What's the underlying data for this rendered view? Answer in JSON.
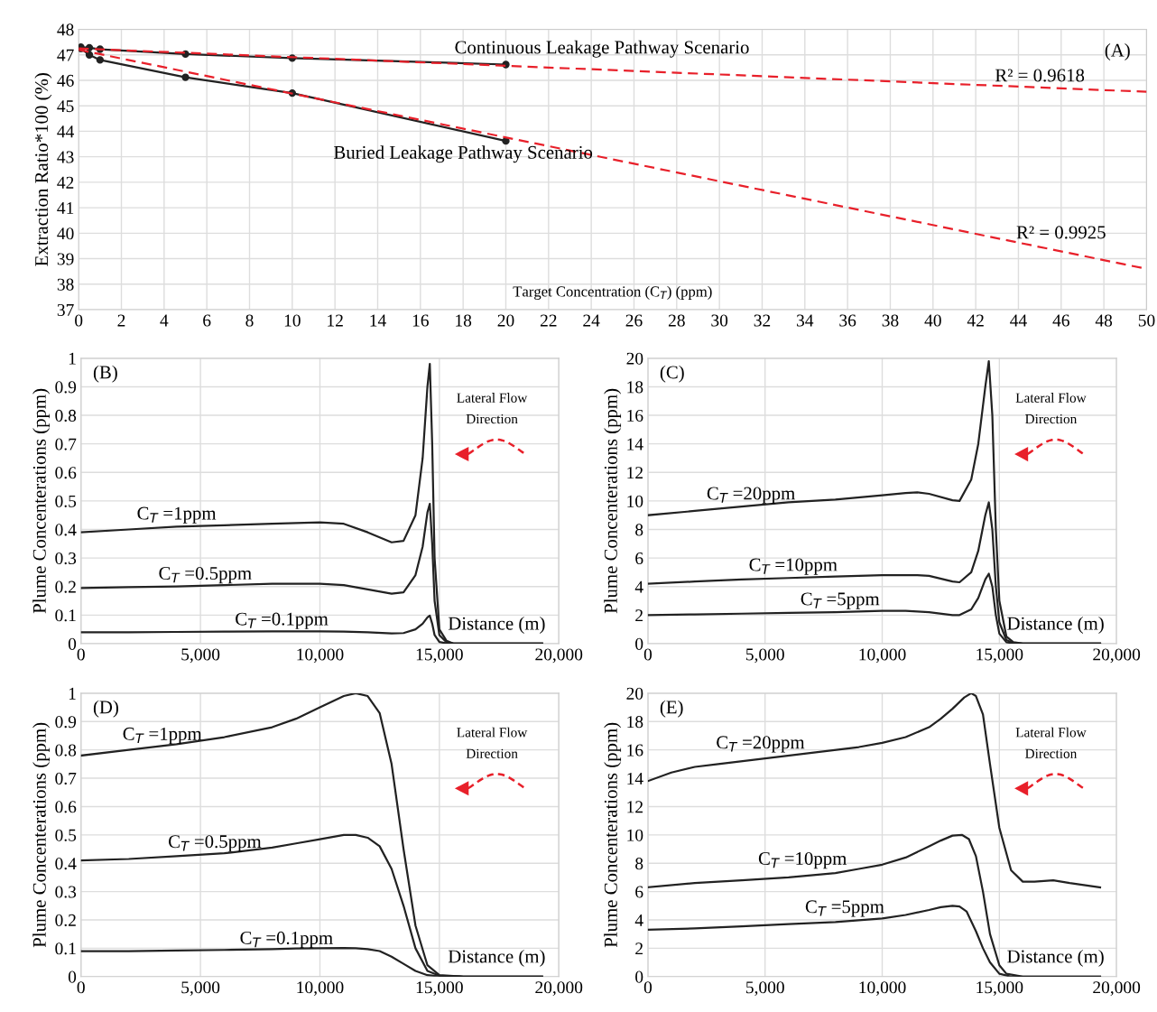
{
  "chart_data": [
    {
      "type": "line",
      "title": "(A)",
      "xlabel": "Target Concentration (C$_{T}$) (ppm)",
      "ylabel": "Extraction Ratio*100 (%)",
      "xlim": [
        0,
        50
      ],
      "ylim": [
        37,
        48
      ],
      "xticks": [
        0,
        2,
        4,
        6,
        8,
        10,
        12,
        14,
        16,
        18,
        20,
        22,
        24,
        26,
        28,
        30,
        32,
        34,
        36,
        38,
        40,
        42,
        44,
        46,
        48,
        50
      ],
      "yticks": [
        37,
        38,
        39,
        40,
        41,
        42,
        43,
        44,
        45,
        46,
        47,
        48
      ],
      "grid": true,
      "series": [
        {
          "name": "Continuous Leakage Pathway Scenario",
          "color": "#222222",
          "marker": "circle",
          "line_style": "solid",
          "x": [
            0.1,
            0.5,
            1,
            5,
            10,
            20
          ],
          "values": [
            47.3,
            47.28,
            47.22,
            47.03,
            46.87,
            46.62
          ]
        },
        {
          "name": "Buried Leakage Pathway Scenario",
          "color": "#222222",
          "marker": "circle",
          "line_style": "solid",
          "x": [
            0.1,
            0.5,
            1,
            5,
            10,
            20
          ],
          "values": [
            47.25,
            47.0,
            46.8,
            46.12,
            45.5,
            43.62
          ]
        },
        {
          "name": "R² = 0.9618",
          "color": "#e8202a",
          "marker": "none",
          "line_style": "dashed",
          "x": [
            0,
            50
          ],
          "values": [
            47.25,
            45.55
          ]
        },
        {
          "name": "R² = 0.9925",
          "color": "#e8202a",
          "marker": "none",
          "line_style": "dashed",
          "x": [
            0,
            50
          ],
          "values": [
            47.2,
            38.6
          ]
        }
      ]
    },
    {
      "type": "line",
      "title": "(B)",
      "xlabel": "Distance (m)",
      "ylabel": "Plume Concenterations (ppm)",
      "xlim": [
        0,
        20000
      ],
      "ylim": [
        0,
        1
      ],
      "xticks": [
        0,
        {
          "value": 5000,
          "label": "5,000"
        },
        {
          "value": 10000,
          "label": "10,000"
        },
        {
          "value": 15000,
          "label": "15,000"
        },
        {
          "value": 20000,
          "label": "20,000"
        }
      ],
      "yticks": [
        0,
        0.1,
        0.2,
        0.3,
        0.4,
        0.5,
        0.6,
        0.7,
        0.8,
        0.9,
        1
      ],
      "grid": true,
      "x": [
        0,
        2000,
        4000,
        6000,
        8000,
        10000,
        11000,
        12000,
        13000,
        13500,
        14000,
        14300,
        14500,
        14600,
        14700,
        14800,
        15000,
        15300,
        15600,
        16000,
        17000,
        18000,
        19300
      ],
      "series": [
        {
          "name": "C$_{T}$ =1ppm",
          "color": "#222222",
          "values": [
            0.39,
            0.4,
            0.41,
            0.415,
            0.42,
            0.425,
            0.42,
            0.39,
            0.355,
            0.36,
            0.45,
            0.65,
            0.9,
            0.98,
            0.7,
            0.3,
            0.05,
            0.01,
            0,
            0,
            0,
            0,
            0
          ]
        },
        {
          "name": "C$_{T}$ =0.5ppm",
          "color": "#222222",
          "values": [
            0.195,
            0.198,
            0.2,
            0.205,
            0.21,
            0.21,
            0.205,
            0.19,
            0.175,
            0.18,
            0.24,
            0.34,
            0.46,
            0.49,
            0.35,
            0.15,
            0.03,
            0.005,
            0,
            0,
            0,
            0,
            0
          ]
        },
        {
          "name": "C$_{T}$ =0.1ppm",
          "color": "#222222",
          "values": [
            0.04,
            0.04,
            0.041,
            0.042,
            0.043,
            0.043,
            0.042,
            0.04,
            0.036,
            0.037,
            0.05,
            0.07,
            0.092,
            0.098,
            0.07,
            0.03,
            0.006,
            0.001,
            0,
            0,
            0,
            0,
            0
          ]
        }
      ],
      "annotations": [
        "Lateral Flow\nDirection"
      ]
    },
    {
      "type": "line",
      "title": "(C)",
      "xlabel": "Distance (m)",
      "ylabel": "Plume Concenterations (ppm)",
      "xlim": [
        0,
        20000
      ],
      "ylim": [
        0,
        20
      ],
      "xticks": [
        0,
        {
          "value": 5000,
          "label": "5,000"
        },
        {
          "value": 10000,
          "label": "10,000"
        },
        {
          "value": 15000,
          "label": "15,000"
        },
        {
          "value": 20000,
          "label": "20,000"
        }
      ],
      "yticks": [
        0,
        2,
        4,
        6,
        8,
        10,
        12,
        14,
        16,
        18,
        20
      ],
      "grid": true,
      "x": [
        0,
        2000,
        4000,
        6000,
        8000,
        10000,
        11000,
        11500,
        12000,
        13000,
        13300,
        13800,
        14100,
        14400,
        14550,
        14700,
        14850,
        15000,
        15300,
        15600,
        16000,
        17000,
        19300
      ],
      "series": [
        {
          "name": "C$_{T}$ =20ppm",
          "color": "#222222",
          "values": [
            9.0,
            9.3,
            9.6,
            9.9,
            10.1,
            10.4,
            10.55,
            10.6,
            10.5,
            10.05,
            10.0,
            11.5,
            14.0,
            18.0,
            19.8,
            16.0,
            8.0,
            3.0,
            0.5,
            0.1,
            0,
            0,
            0
          ]
        },
        {
          "name": "C$_{T}$ =10ppm",
          "color": "#222222",
          "values": [
            4.2,
            4.35,
            4.5,
            4.6,
            4.7,
            4.8,
            4.8,
            4.8,
            4.75,
            4.35,
            4.3,
            5.0,
            6.5,
            9.0,
            9.9,
            8.0,
            4.0,
            1.5,
            0.25,
            0.05,
            0,
            0,
            0
          ]
        },
        {
          "name": "C$_{T}$ =5ppm",
          "color": "#222222",
          "values": [
            2.0,
            2.05,
            2.1,
            2.15,
            2.2,
            2.3,
            2.3,
            2.25,
            2.2,
            2.0,
            2.0,
            2.4,
            3.2,
            4.5,
            4.9,
            4.0,
            2.0,
            0.7,
            0.1,
            0.02,
            0,
            0,
            0
          ]
        }
      ],
      "annotations": [
        "Lateral Flow\nDirection"
      ]
    },
    {
      "type": "line",
      "title": "(D)",
      "xlabel": "Distance (m)",
      "ylabel": "Plume Concenterations (ppm)",
      "xlim": [
        0,
        20000
      ],
      "ylim": [
        0,
        1
      ],
      "xticks": [
        0,
        {
          "value": 5000,
          "label": "5,000"
        },
        {
          "value": 10000,
          "label": "10,000"
        },
        {
          "value": 15000,
          "label": "15,000"
        },
        {
          "value": 20000,
          "label": "20,000"
        }
      ],
      "yticks": [
        0,
        0.1,
        0.2,
        0.3,
        0.4,
        0.5,
        0.6,
        0.7,
        0.8,
        0.9,
        1
      ],
      "grid": true,
      "x": [
        0,
        2000,
        4000,
        6000,
        8000,
        9000,
        10000,
        11000,
        11500,
        12000,
        12500,
        13000,
        13500,
        14000,
        14500,
        15000,
        16000,
        19300
      ],
      "series": [
        {
          "name": "C$_{T}$ =1ppm",
          "color": "#222222",
          "values": [
            0.78,
            0.8,
            0.82,
            0.845,
            0.88,
            0.91,
            0.95,
            0.99,
            1.0,
            0.99,
            0.93,
            0.75,
            0.45,
            0.18,
            0.04,
            0.005,
            0,
            0
          ]
        },
        {
          "name": "C$_{T}$ =0.5ppm",
          "color": "#222222",
          "values": [
            0.41,
            0.415,
            0.425,
            0.435,
            0.455,
            0.47,
            0.485,
            0.5,
            0.5,
            0.49,
            0.46,
            0.38,
            0.25,
            0.1,
            0.02,
            0.003,
            0,
            0
          ]
        },
        {
          "name": "C$_{T}$ =0.1ppm",
          "color": "#222222",
          "values": [
            0.09,
            0.09,
            0.092,
            0.094,
            0.097,
            0.099,
            0.1,
            0.101,
            0.1,
            0.097,
            0.09,
            0.07,
            0.045,
            0.02,
            0.005,
            0.001,
            0,
            0
          ]
        }
      ],
      "annotations": [
        "Lateral Flow\nDirection"
      ]
    },
    {
      "type": "line",
      "title": "(E)",
      "xlabel": "Distance (m)",
      "ylabel": "Plume Concenterations (ppm)",
      "xlim": [
        0,
        20000
      ],
      "ylim": [
        0,
        20
      ],
      "xticks": [
        0,
        {
          "value": 5000,
          "label": "5,000"
        },
        {
          "value": 10000,
          "label": "10,000"
        },
        {
          "value": 15000,
          "label": "15,000"
        },
        {
          "value": 20000,
          "label": "20,000"
        }
      ],
      "yticks": [
        0,
        2,
        4,
        6,
        8,
        10,
        12,
        14,
        16,
        18,
        20
      ],
      "grid": true,
      "series": [
        {
          "name": "C$_{T}$ =20ppm",
          "color": "#222222",
          "x": [
            0,
            1000,
            2000,
            3000,
            5000,
            7000,
            9000,
            10000,
            11000,
            12000,
            12500,
            13000,
            13500,
            13800,
            14000,
            14300,
            14600,
            15000,
            15500,
            16000,
            16500,
            17300,
            18000,
            19300
          ],
          "values": [
            13.8,
            14.4,
            14.8,
            15.0,
            15.4,
            15.8,
            16.2,
            16.5,
            16.9,
            17.6,
            18.2,
            18.9,
            19.7,
            20.0,
            19.8,
            18.5,
            15.0,
            10.5,
            7.5,
            6.7,
            6.7,
            6.8,
            6.6,
            6.3
          ]
        },
        {
          "name": "C$_{T}$ =10ppm",
          "color": "#222222",
          "x": [
            0,
            2000,
            4000,
            6000,
            8000,
            9000,
            10000,
            11000,
            12000,
            12500,
            13000,
            13400,
            13700,
            14000,
            14300,
            14600,
            15000,
            15300,
            16000,
            19300
          ],
          "values": [
            6.3,
            6.6,
            6.8,
            7.0,
            7.3,
            7.6,
            7.9,
            8.4,
            9.2,
            9.6,
            9.95,
            10.0,
            9.7,
            8.5,
            6.0,
            3.0,
            0.8,
            0.2,
            0,
            0
          ]
        },
        {
          "name": "C$_{T}$ =5ppm",
          "color": "#222222",
          "x": [
            0,
            2000,
            4000,
            6000,
            8000,
            10000,
            11000,
            12000,
            12500,
            13000,
            13300,
            13600,
            14000,
            14300,
            14600,
            15000,
            15500,
            19300
          ],
          "values": [
            3.3,
            3.4,
            3.55,
            3.7,
            3.85,
            4.1,
            4.35,
            4.7,
            4.9,
            5.0,
            4.95,
            4.6,
            3.2,
            2.0,
            1.0,
            0.2,
            0,
            0
          ]
        }
      ],
      "annotations": [
        "Lateral Flow\nDirection"
      ]
    }
  ]
}
